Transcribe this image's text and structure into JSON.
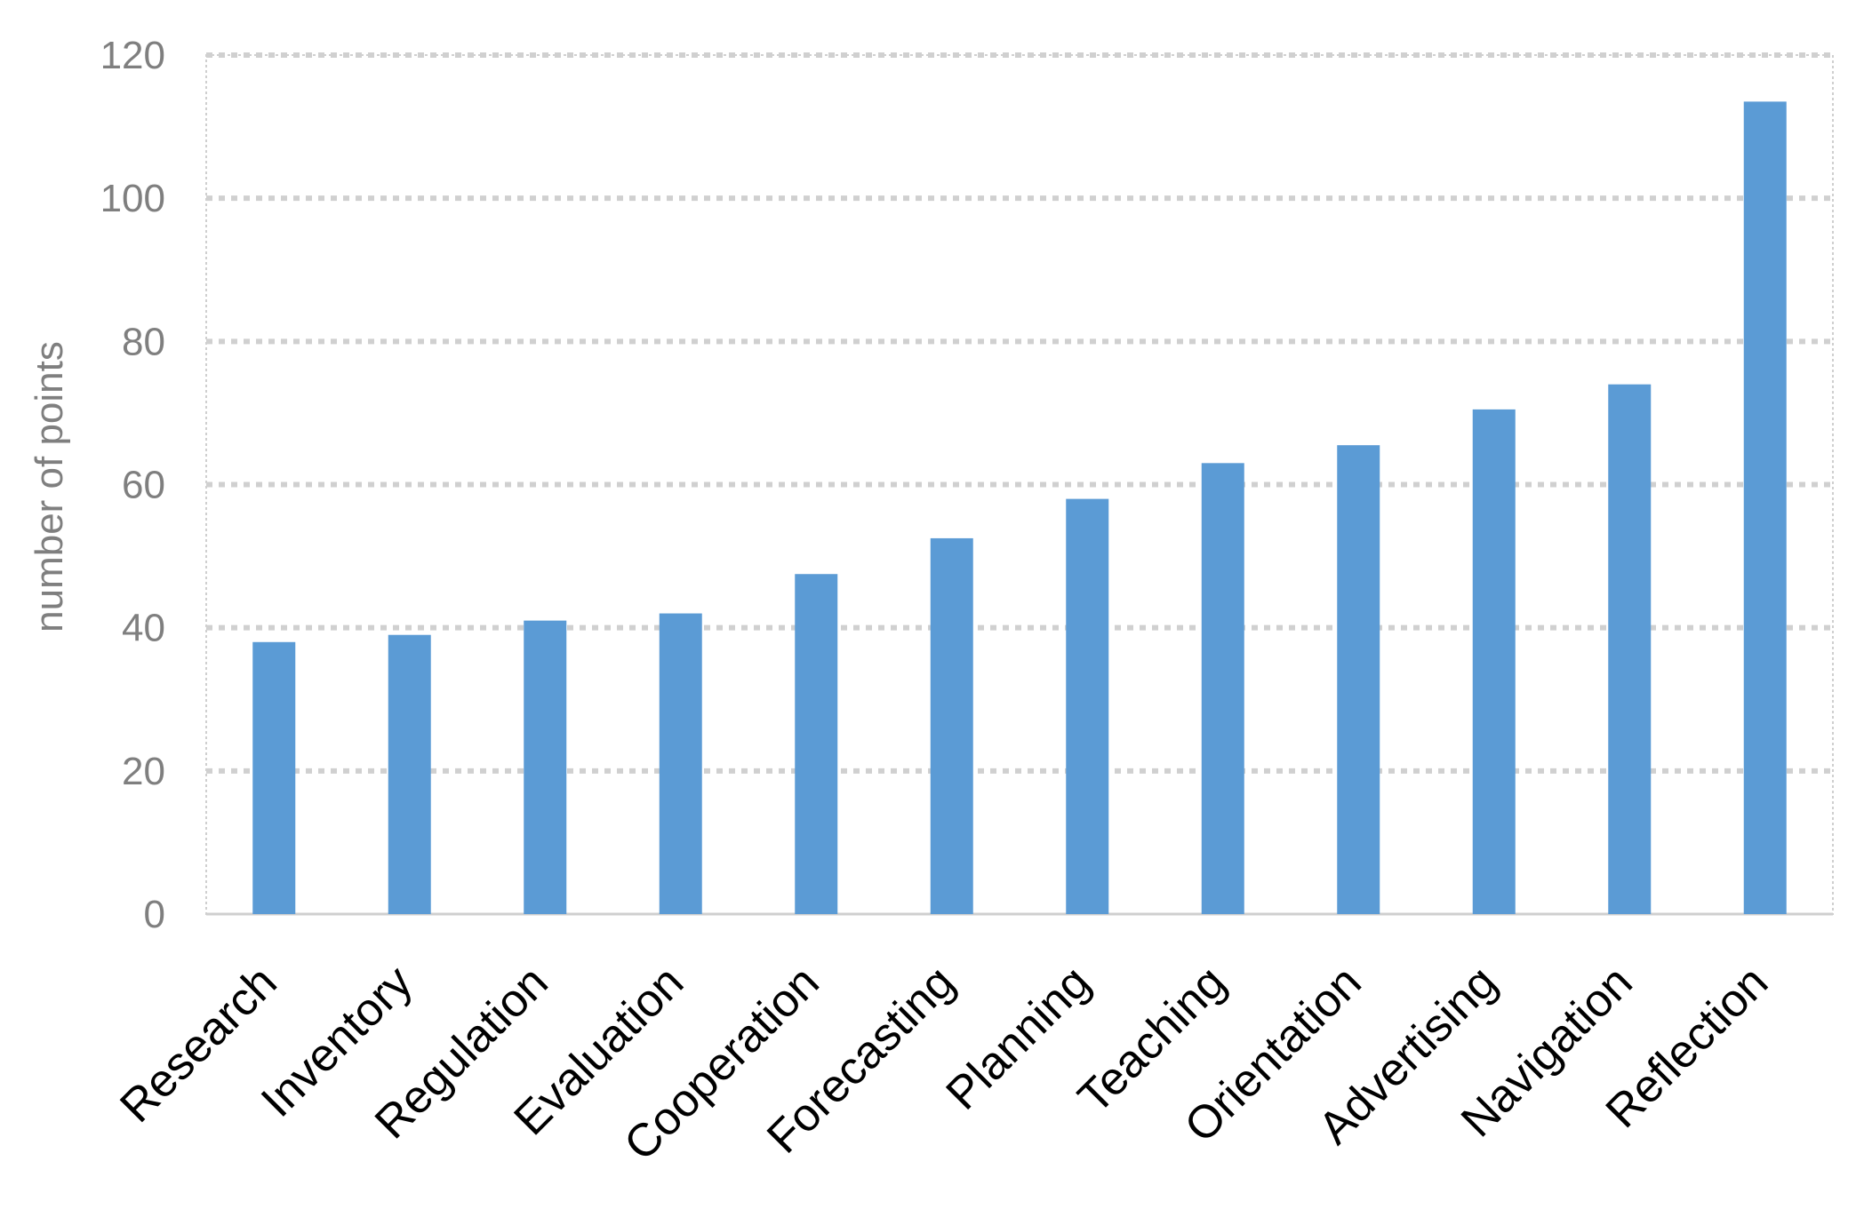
{
  "chart_data": {
    "type": "bar",
    "title": "",
    "xlabel": "",
    "ylabel": "number of points",
    "categories": [
      "Research",
      "Inventory",
      "Regulation",
      "Evaluation",
      "Cooperation",
      "Forecasting",
      "Planning",
      "Teaching",
      "Orientation",
      "Advertising",
      "Navigation",
      "Reflection"
    ],
    "values": [
      38,
      39,
      41,
      42,
      47.5,
      52.5,
      58,
      63,
      65.5,
      70.5,
      74,
      113.5
    ],
    "ylim": [
      0,
      120
    ],
    "yticks": [
      0,
      20,
      40,
      60,
      80,
      100,
      120
    ],
    "grid": true,
    "legend": "none",
    "bar_color": "#5b9bd5"
  }
}
